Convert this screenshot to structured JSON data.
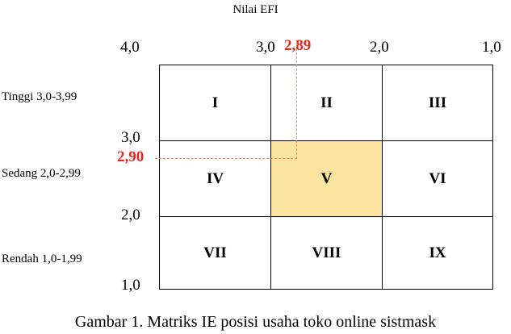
{
  "axis_title": "Nilai EFI",
  "top_ticks": [
    "4,0",
    "3,0",
    "2,0",
    "1,0"
  ],
  "left_ticks": [
    "3,0",
    "2,0",
    "1,0"
  ],
  "row_labels": [
    "Tinggi 3,0-3,99",
    "Sedang 2,0-2,99",
    "Rendah 1,0-1,99"
  ],
  "markers": {
    "efi_value": "2,89",
    "ife_value": "2,90"
  },
  "cells": [
    "I",
    "II",
    "III",
    "IV",
    "V",
    "VI",
    "VII",
    "VIII",
    "IX"
  ],
  "highlighted_cell": "V",
  "colors": {
    "highlight": "#fbe3a0",
    "marker_text": "#e8221c",
    "dashed_line": "#f0825a"
  },
  "caption": "Gambar 1. Matriks IE posisi usaha toko online sistmask"
}
